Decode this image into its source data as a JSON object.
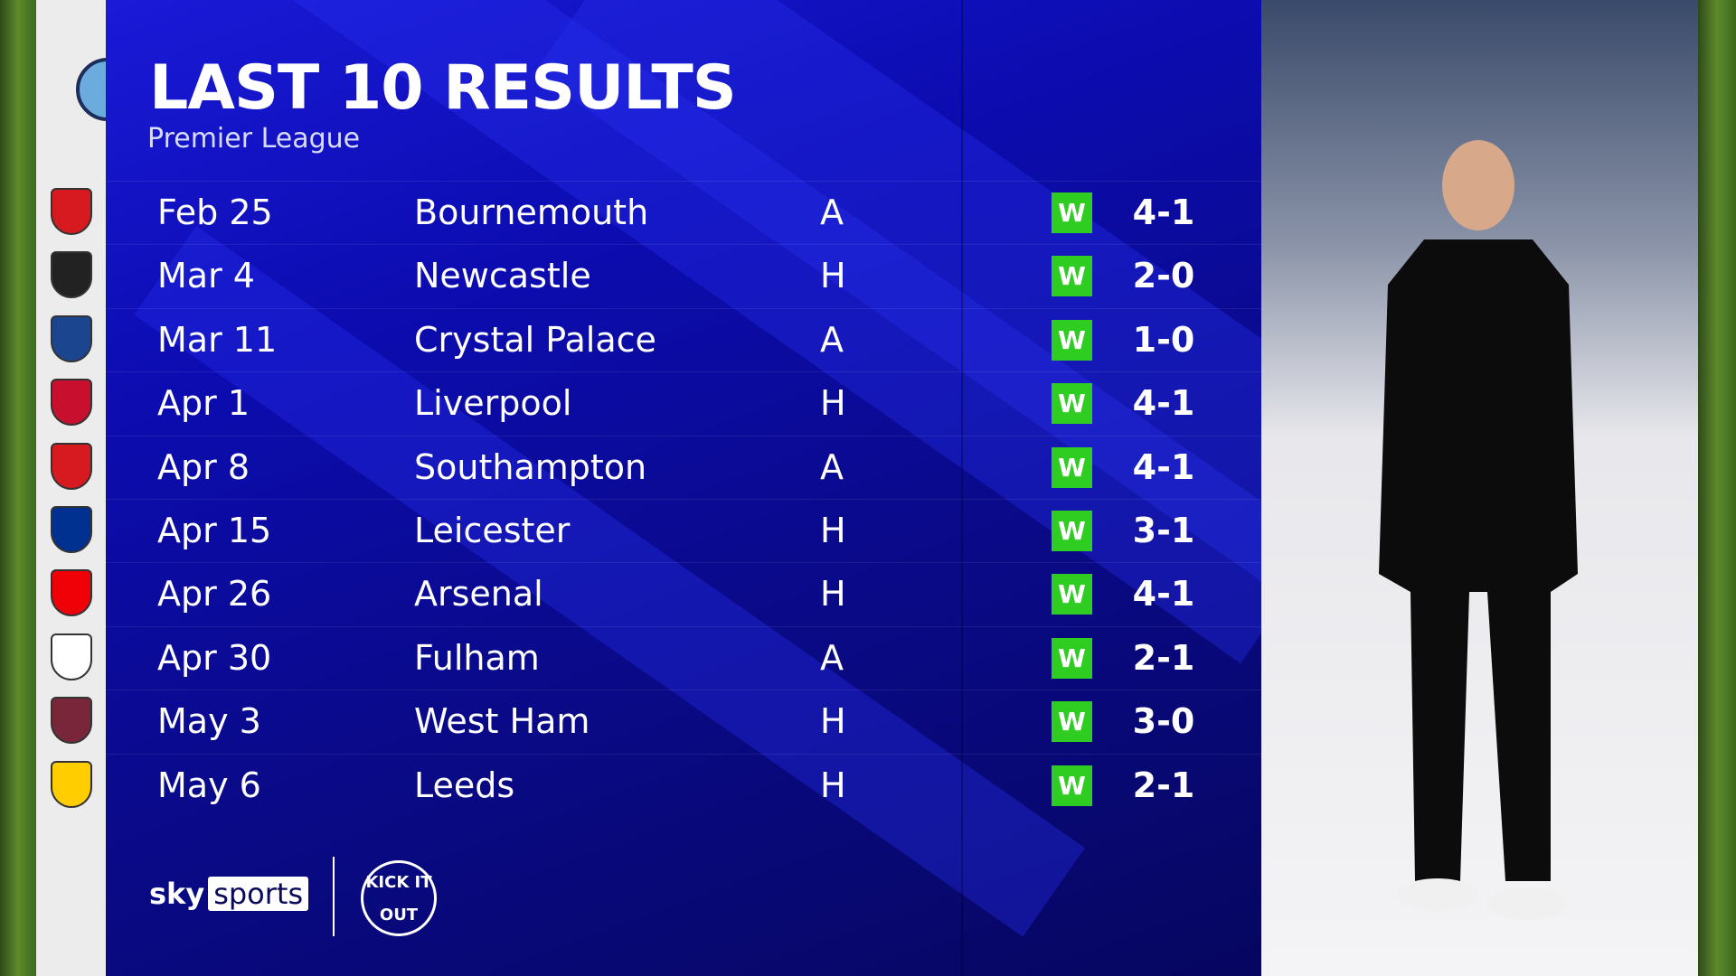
{
  "header": {
    "title": "LAST 10 RESULTS",
    "subtitle": "Premier League"
  },
  "team_badge": "manchester-city-crest",
  "colors": {
    "win": "#2fcc22",
    "panel": "#0c0cb0"
  },
  "results": [
    {
      "date": "Feb 25",
      "opponent": "Bournemouth",
      "venue": "A",
      "result": "W",
      "score": "4-1",
      "crest_color": "#d71920"
    },
    {
      "date": "Mar 4",
      "opponent": "Newcastle",
      "venue": "H",
      "result": "W",
      "score": "2-0",
      "crest_color": "#222222"
    },
    {
      "date": "Mar 11",
      "opponent": "Crystal Palace",
      "venue": "A",
      "result": "W",
      "score": "1-0",
      "crest_color": "#1b458f"
    },
    {
      "date": "Apr 1",
      "opponent": "Liverpool",
      "venue": "H",
      "result": "W",
      "score": "4-1",
      "crest_color": "#c8102e"
    },
    {
      "date": "Apr 8",
      "opponent": "Southampton",
      "venue": "A",
      "result": "W",
      "score": "4-1",
      "crest_color": "#d71920"
    },
    {
      "date": "Apr 15",
      "opponent": "Leicester",
      "venue": "H",
      "result": "W",
      "score": "3-1",
      "crest_color": "#003090"
    },
    {
      "date": "Apr 26",
      "opponent": "Arsenal",
      "venue": "H",
      "result": "W",
      "score": "4-1",
      "crest_color": "#ef0107"
    },
    {
      "date": "Apr 30",
      "opponent": "Fulham",
      "venue": "A",
      "result": "W",
      "score": "2-1",
      "crest_color": "#ffffff"
    },
    {
      "date": "May 3",
      "opponent": "West Ham",
      "venue": "H",
      "result": "W",
      "score": "3-0",
      "crest_color": "#7a263a"
    },
    {
      "date": "May 6",
      "opponent": "Leeds",
      "venue": "H",
      "result": "W",
      "score": "2-1",
      "crest_color": "#ffcd00"
    }
  ],
  "footer": {
    "sky": "sky",
    "sports": "sports",
    "kick_it_out": "KICK IT OUT"
  }
}
